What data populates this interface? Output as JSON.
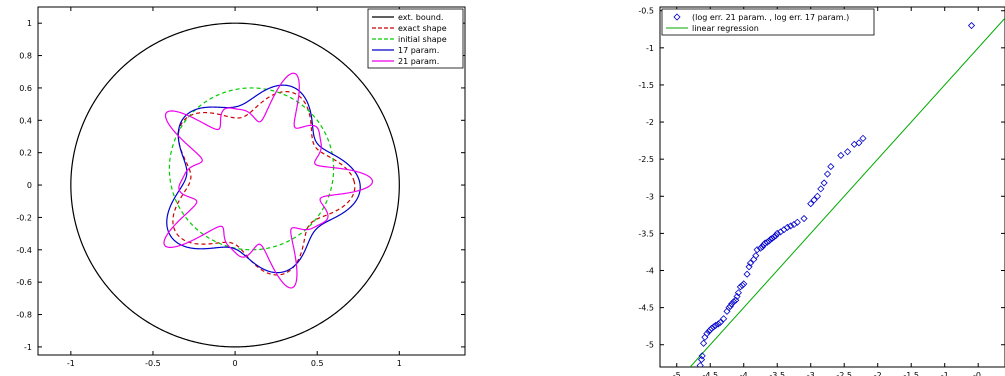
{
  "chart_data": [
    {
      "type": "line",
      "title": "",
      "xlabel": "",
      "ylabel": "",
      "xlim": [
        -1.2,
        1.4
      ],
      "ylim": [
        -1.05,
        1.1
      ],
      "xticks": [
        -1,
        -0.5,
        0,
        0.5,
        1
      ],
      "xtick_labels": [
        "-1",
        "-0.5",
        "0",
        "0.5",
        "1"
      ],
      "yticks": [
        1,
        0.8,
        0.6,
        0.4,
        0.2,
        0,
        -0.2,
        -0.4,
        -0.6,
        -0.8,
        -1
      ],
      "ytick_labels": [
        "1",
        "0.8",
        "0.6",
        "0.4",
        "0.2",
        "0",
        "-0.2",
        "-0.4",
        "-0.6",
        "-0.8",
        "-1"
      ],
      "grid": false,
      "legend_position": "top-right",
      "series": [
        {
          "name": "ext. bound.",
          "color": "#000000",
          "dash": "solid",
          "curve": {
            "kind": "circle",
            "cx": 0,
            "cy": 0,
            "r": 1.0
          }
        },
        {
          "name": "exact shape",
          "color": "#cc0000",
          "dash": "dashed",
          "curve": {
            "kind": "polar",
            "cx": 0.14,
            "cy": 0.02,
            "r0": 0.5,
            "terms": [
              {
                "k": 5,
                "a": 0.09,
                "phi": 0.32
              }
            ]
          }
        },
        {
          "name": "initial shape",
          "color": "#00cc00",
          "dash": "dashed",
          "curve": {
            "kind": "circle",
            "cx": 0.1,
            "cy": 0.1,
            "r": 0.5
          }
        },
        {
          "name": "17 param.",
          "color": "#0000cc",
          "dash": "solid",
          "curve": {
            "kind": "polar",
            "cx": 0.14,
            "cy": 0.03,
            "r0": 0.53,
            "terms": [
              {
                "k": 5,
                "a": 0.08,
                "phi": 0.3
              },
              {
                "k": 3,
                "a": 0.025,
                "phi": 1.2
              }
            ]
          }
        },
        {
          "name": "21 param.",
          "color": "#ee00ee",
          "dash": "solid",
          "curve": {
            "kind": "polar",
            "cx": 0.14,
            "cy": 0.03,
            "r0": 0.48,
            "terms": [
              {
                "k": 5,
                "a": 0.08,
                "phi": 0.32
              },
              {
                "k": 10,
                "a": 0.1,
                "phi": 0.0
              },
              {
                "k": 15,
                "a": 0.04,
                "phi": 0.2
              }
            ]
          }
        }
      ]
    },
    {
      "type": "scatter",
      "title": "",
      "xlabel": "",
      "ylabel": "",
      "xlim": [
        -5.25,
        -0.1
      ],
      "ylim": [
        -5.3,
        -0.45
      ],
      "xticks": [
        -5,
        -4.5,
        -4,
        -3.5,
        -3,
        -2.5,
        -2,
        -1.5,
        -1,
        -0.5
      ],
      "xtick_labels": [
        "-5",
        "-4.5",
        "-4",
        "-3.5",
        "-3",
        "-2.5",
        "-2",
        "-1.5",
        "-1",
        "-0."
      ],
      "yticks": [
        -0.5,
        -1,
        -1.5,
        -2,
        -2.5,
        -3,
        -3.5,
        -4,
        -4.5,
        -5
      ],
      "ytick_labels": [
        "-0.5",
        "-1",
        "-1.5",
        "-2",
        "-2.5",
        "-3",
        "-3.5",
        "-4",
        "-4.5",
        "-5"
      ],
      "grid": false,
      "legend_position": "top-left",
      "series": [
        {
          "name": "(log err. 21 param. , log err. 17 param.)",
          "marker": "diamond",
          "color": "#0000cc",
          "x": [
            -4.65,
            -4.63,
            -4.62,
            -4.6,
            -4.58,
            -4.55,
            -4.52,
            -4.5,
            -4.48,
            -4.45,
            -4.42,
            -4.38,
            -4.35,
            -4.3,
            -4.25,
            -4.22,
            -4.2,
            -4.18,
            -4.15,
            -4.12,
            -4.1,
            -4.08,
            -4.05,
            -4.02,
            -4.0,
            -3.95,
            -3.92,
            -3.9,
            -3.85,
            -3.82,
            -3.8,
            -3.75,
            -3.72,
            -3.7,
            -3.68,
            -3.65,
            -3.62,
            -3.6,
            -3.58,
            -3.55,
            -3.52,
            -3.5,
            -3.45,
            -3.4,
            -3.35,
            -3.3,
            -3.25,
            -3.2,
            -3.1,
            -3.0,
            -2.95,
            -2.9,
            -2.85,
            -2.8,
            -2.75,
            -2.7,
            -2.55,
            -2.45,
            -2.35,
            -2.28,
            -2.22,
            -0.6
          ],
          "y": [
            -5.28,
            -5.2,
            -5.15,
            -4.98,
            -4.9,
            -4.85,
            -4.82,
            -4.8,
            -4.78,
            -4.76,
            -4.74,
            -4.72,
            -4.7,
            -4.65,
            -4.55,
            -4.5,
            -4.48,
            -4.45,
            -4.42,
            -4.4,
            -4.35,
            -4.3,
            -4.22,
            -4.2,
            -4.18,
            -4.05,
            -3.95,
            -3.9,
            -3.85,
            -3.8,
            -3.72,
            -3.7,
            -3.68,
            -3.65,
            -3.63,
            -3.62,
            -3.6,
            -3.58,
            -3.57,
            -3.55,
            -3.53,
            -3.5,
            -3.48,
            -3.45,
            -3.42,
            -3.4,
            -3.38,
            -3.35,
            -3.3,
            -3.1,
            -3.05,
            -3.0,
            -2.9,
            -2.82,
            -2.7,
            -2.6,
            -2.45,
            -2.4,
            -2.3,
            -2.28,
            -2.22,
            -0.7
          ]
        },
        {
          "name": "linear regression",
          "color": "#00aa00",
          "line": {
            "x": [
              -4.8,
              -0.1
            ],
            "y": [
              -5.3,
              -0.6
            ]
          }
        }
      ]
    }
  ]
}
